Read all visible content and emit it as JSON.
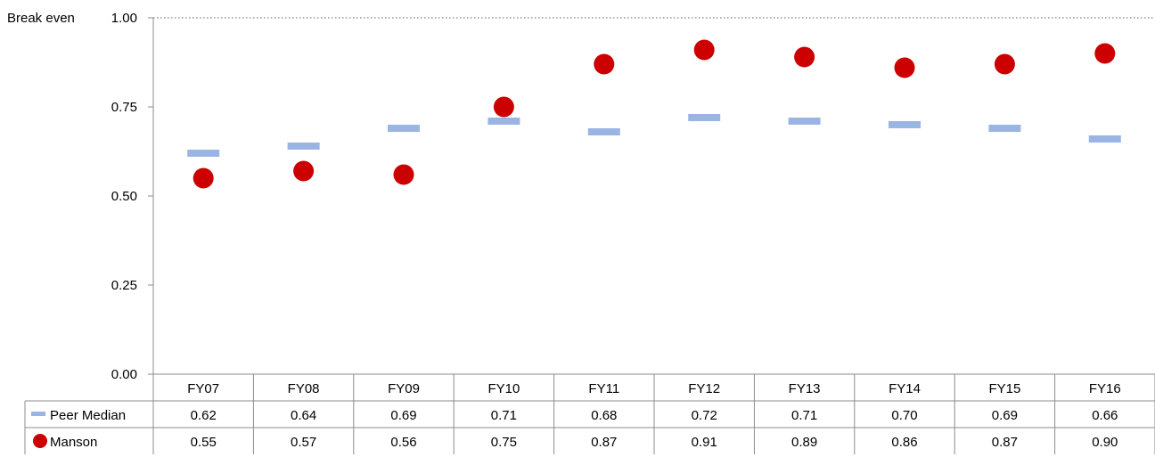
{
  "chart_data": {
    "type": "scatter",
    "categories": [
      "FY07",
      "FY08",
      "FY09",
      "FY10",
      "FY11",
      "FY12",
      "FY13",
      "FY14",
      "FY15",
      "FY16"
    ],
    "series": [
      {
        "name": "Peer Median",
        "marker": "dash",
        "color": "#9ab5e3",
        "values": [
          0.62,
          0.64,
          0.69,
          0.71,
          0.68,
          0.72,
          0.71,
          0.7,
          0.69,
          0.66
        ],
        "labels": [
          "0.62",
          "0.64",
          "0.69",
          "0.71",
          "0.68",
          "0.72",
          "0.71",
          "0.70",
          "0.69",
          "0.66"
        ]
      },
      {
        "name": "Manson",
        "marker": "circle",
        "color": "#cc0000",
        "values": [
          0.55,
          0.57,
          0.56,
          0.75,
          0.87,
          0.91,
          0.89,
          0.86,
          0.87,
          0.9
        ],
        "labels": [
          "0.55",
          "0.57",
          "0.56",
          "0.75",
          "0.87",
          "0.91",
          "0.89",
          "0.86",
          "0.87",
          "0.90"
        ]
      }
    ],
    "ylim": [
      0,
      1
    ],
    "yticks": [
      "0.00",
      "0.25",
      "0.50",
      "0.75",
      "1.00"
    ],
    "reference_line": {
      "value": 1.0,
      "label": "Break even",
      "style": "dotted"
    },
    "data_table": true,
    "grid": false
  }
}
